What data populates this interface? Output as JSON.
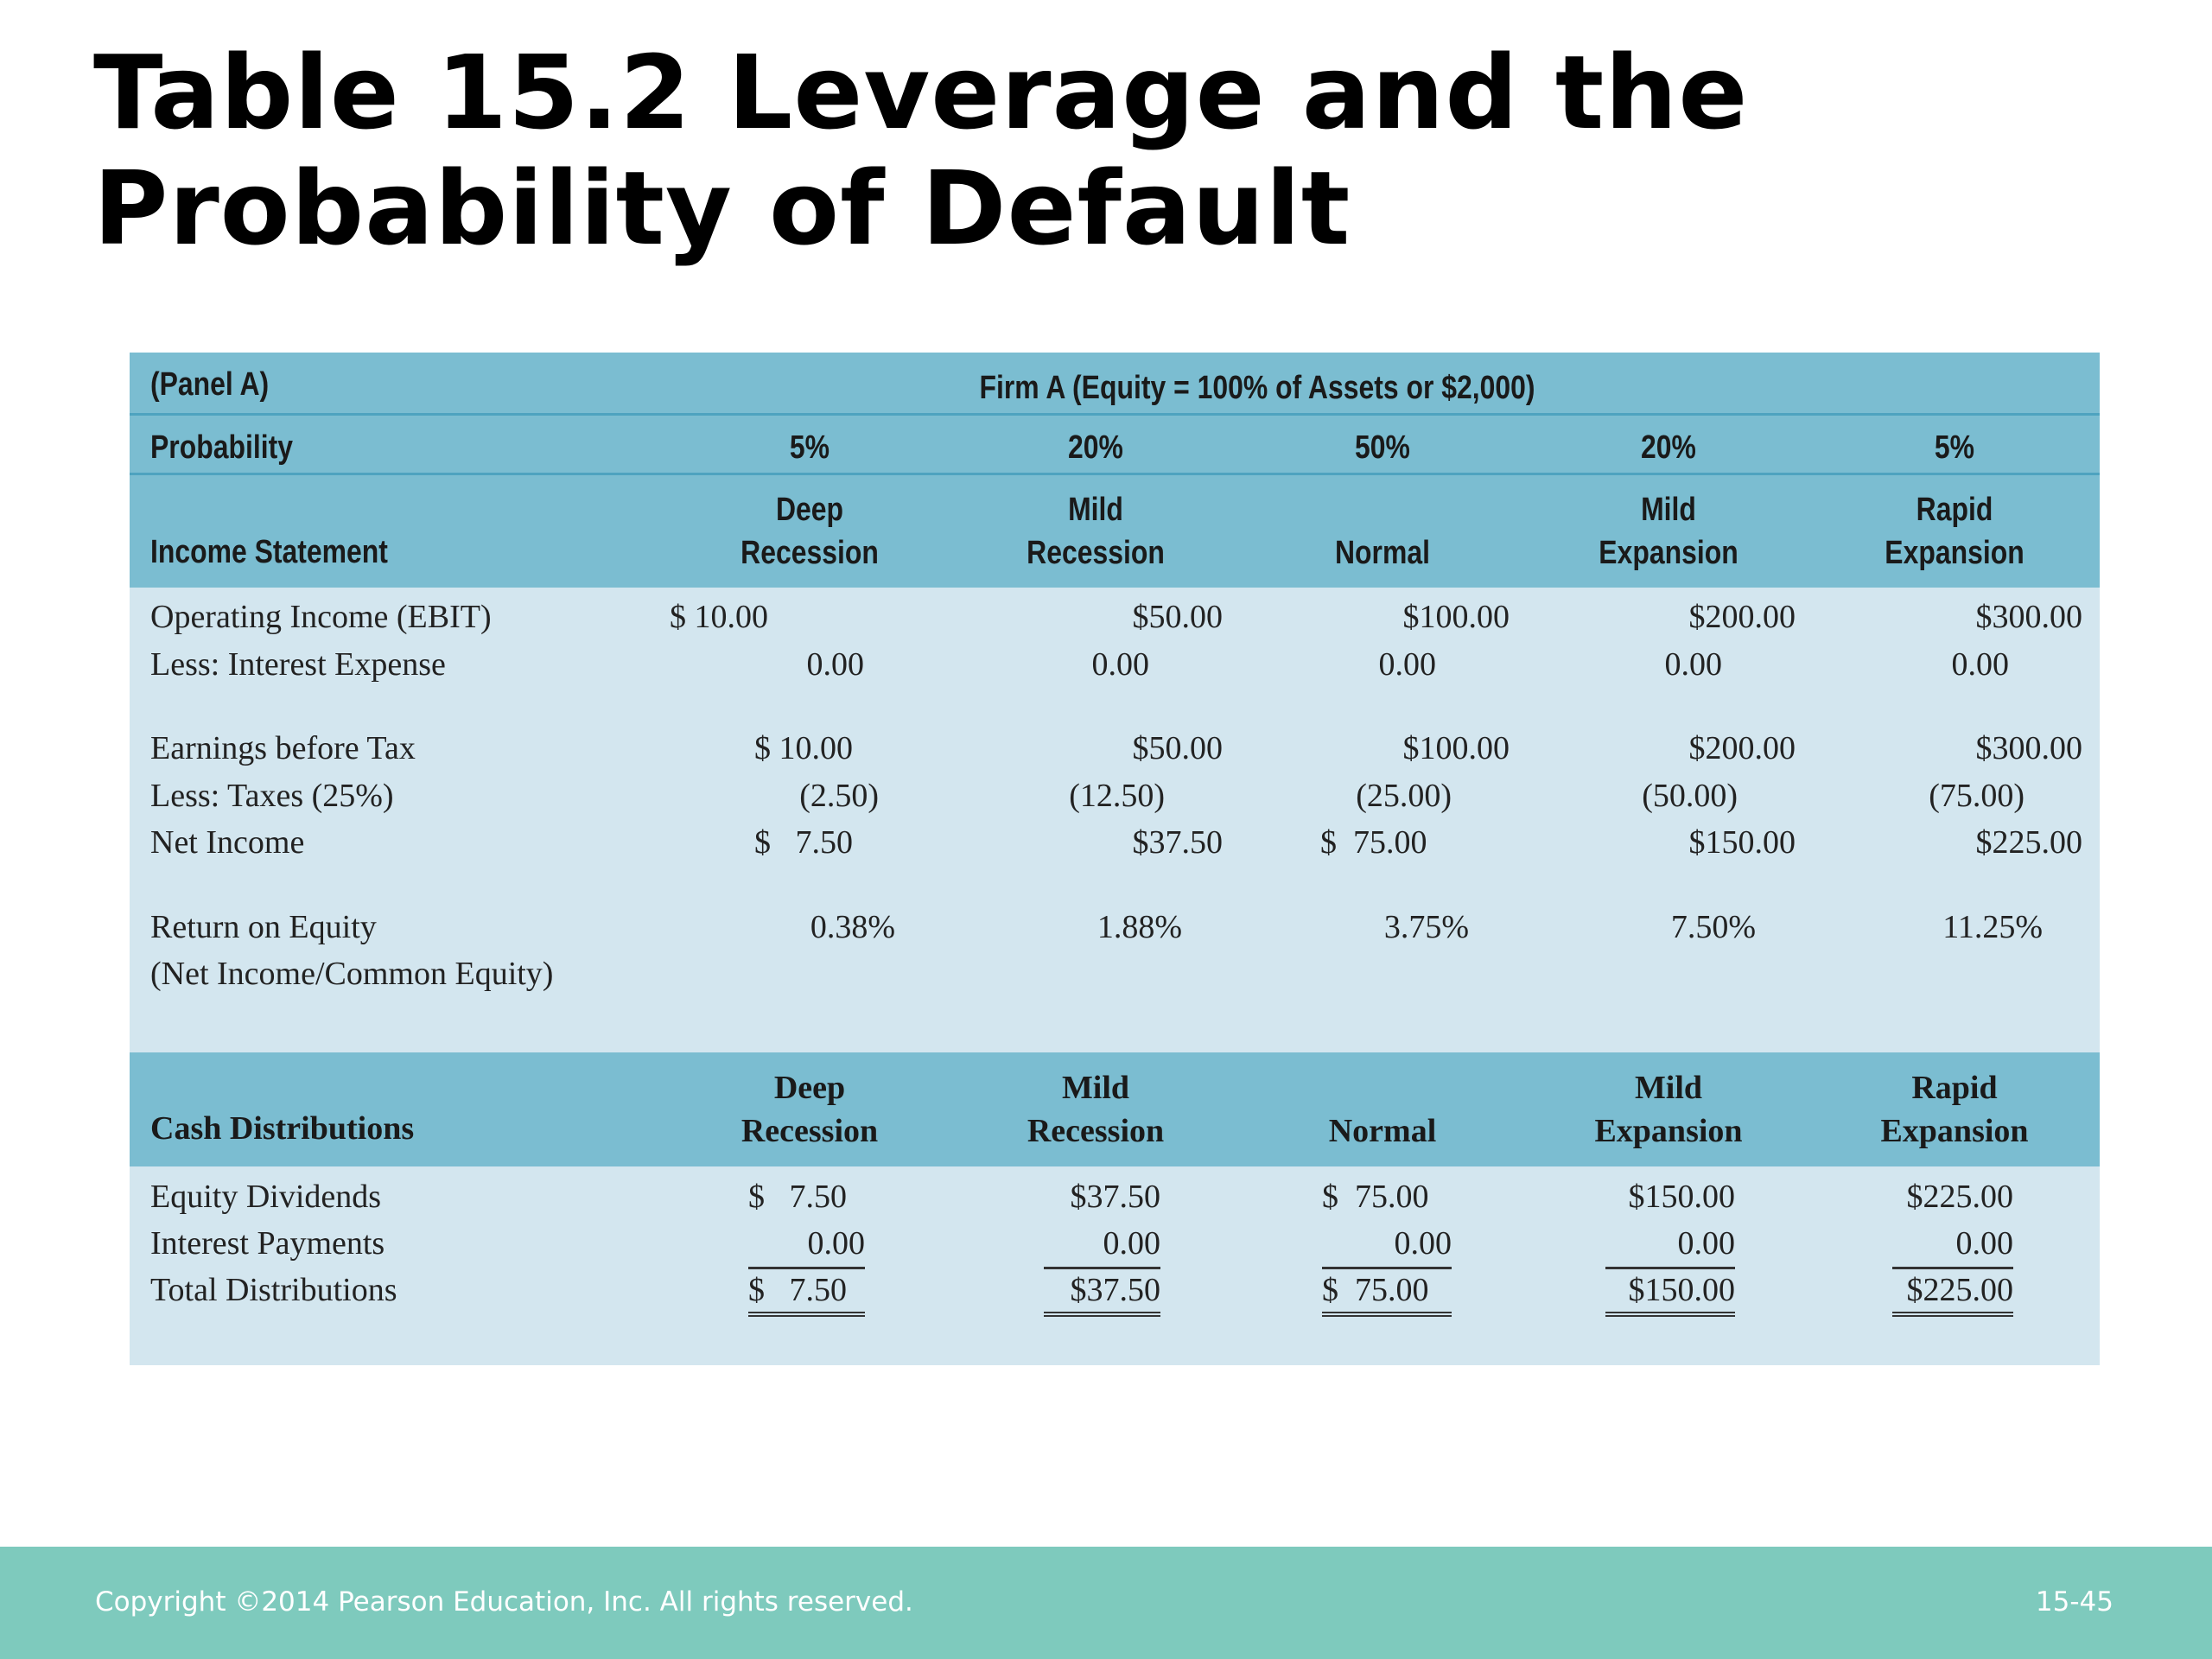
{
  "title": {
    "line1": "Table 15.2  Leverage and the",
    "line2": "Probability of Default"
  },
  "table": {
    "panel_label": "(Panel A)",
    "firm_title": "Firm A (Equity = 100% of Assets or $2,000)",
    "probability_label": "Probability",
    "probabilities": [
      "5%",
      "20%",
      "50%",
      "20%",
      "5%"
    ],
    "income_statement_label": "Income Statement",
    "scenarios": [
      {
        "line1": "Deep",
        "line2": "Recession"
      },
      {
        "line1": "Mild",
        "line2": "Recession"
      },
      {
        "line1": "",
        "line2": "Normal"
      },
      {
        "line1": "Mild",
        "line2": "Expansion"
      },
      {
        "line1": "Rapid",
        "line2": "Expansion"
      }
    ],
    "rows": {
      "ebit": {
        "label": "Operating Income (EBIT)",
        "values": [
          "$ 10.00",
          "$50.00",
          "$100.00",
          "$200.00",
          "$300.00"
        ]
      },
      "interest": {
        "label": "Less: Interest Expense",
        "values": [
          "0.00",
          "0.00",
          "0.00",
          "0.00",
          "0.00"
        ]
      },
      "ebt": {
        "label": "Earnings before Tax",
        "values": [
          "$ 10.00",
          "$50.00",
          "$100.00",
          "$200.00",
          "$300.00"
        ]
      },
      "taxes": {
        "label": "Less: Taxes (25%)",
        "values": [
          "(2.50)",
          "(12.50)",
          "(25.00)",
          "(50.00)",
          "(75.00)"
        ]
      },
      "net_income": {
        "label": "Net Income",
        "values": [
          "$   7.50",
          "$37.50",
          "$  75.00",
          "$150.00",
          "$225.00"
        ]
      },
      "roe": {
        "label": "Return on Equity",
        "sublabel": "(Net Income/Common Equity)",
        "values": [
          "0.38%",
          "1.88%",
          "3.75%",
          "7.50%",
          "11.25%"
        ]
      }
    },
    "cash_distributions_label": "Cash Distributions",
    "cash_rows": {
      "dividends": {
        "label": "Equity Dividends",
        "values": [
          "$   7.50",
          "$37.50",
          "$  75.00",
          "$150.00",
          "$225.00"
        ]
      },
      "interest_payments": {
        "label": "Interest Payments",
        "values": [
          "0.00",
          "0.00",
          "0.00",
          "0.00",
          "0.00"
        ]
      },
      "total": {
        "label": "Total Distributions",
        "values": [
          "$   7.50",
          "$37.50",
          "$  75.00",
          "$150.00",
          "$225.00"
        ]
      }
    }
  },
  "footer": {
    "copyright": "Copyright ©2014 Pearson Education, Inc. All rights reserved.",
    "page": "15-45"
  }
}
